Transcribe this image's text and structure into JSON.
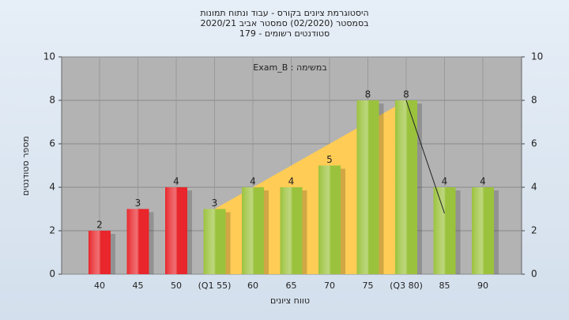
{
  "chart_data": {
    "type": "bar",
    "title": [
      "היסטוגרמת ציונים בקורס - עבוד ונתוח תמונות",
      "בסמסטר  (02/2020)  סמסטר אביב 2020/21",
      "סטודנטים רשומים - 179"
    ],
    "annotation": "Exam_B : במשימה",
    "xlabel": "טווח ציונים",
    "ylabel": "מספר סטודנטים",
    "categories": [
      "40",
      "45",
      "50",
      "(Q1 55)",
      "60",
      "65",
      "70",
      "75",
      "(Q3 80)",
      "85",
      "90"
    ],
    "values": [
      2,
      3,
      4,
      3,
      4,
      4,
      5,
      8,
      8,
      4,
      4
    ],
    "colors": [
      "#e8262b",
      "#e8262b",
      "#e8262b",
      "#9bc23c",
      "#9bc23c",
      "#9bc23c",
      "#9bc23c",
      "#9bc23c",
      "#9bc23c",
      "#9bc23c",
      "#9bc23c"
    ],
    "series": [
      {
        "type": "area",
        "color": "#ffcc55",
        "values": [
          null,
          null,
          null,
          3,
          4,
          5,
          6,
          7,
          8,
          null,
          null
        ]
      },
      {
        "type": "line",
        "color": "#222222",
        "values": [
          null,
          null,
          null,
          null,
          null,
          null,
          null,
          null,
          8,
          2.8,
          null
        ]
      }
    ],
    "ylim": [
      0,
      10
    ],
    "yticks": [
      0,
      2,
      4,
      6,
      8,
      10
    ],
    "y2lim": [
      0,
      10
    ],
    "y2ticks": [
      0,
      2,
      4,
      6,
      8,
      10
    ],
    "grid": true
  }
}
